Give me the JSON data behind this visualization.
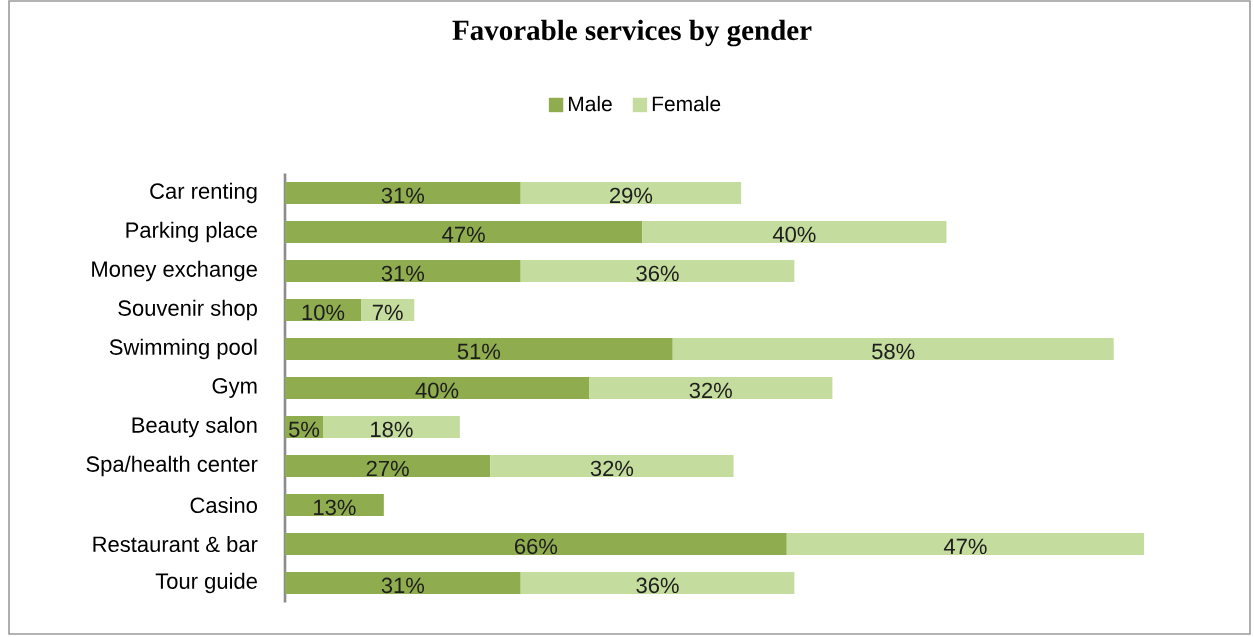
{
  "chart_data": {
    "type": "bar",
    "orientation": "horizontal",
    "stacked": true,
    "title": "Favorable services by gender",
    "categories": [
      "Car renting",
      "Parking place",
      "Money exchange",
      "Souvenir shop",
      "Swimming pool",
      "Gym",
      "Beauty salon",
      "Spa/health center",
      "Casino",
      "Restaurant & bar",
      "Tour guide"
    ],
    "series": [
      {
        "name": "Male",
        "color": "#8fad4f",
        "values": [
          31,
          47,
          31,
          10,
          51,
          40,
          5,
          27,
          13,
          66,
          31
        ],
        "value_labels": [
          "31%",
          "47%",
          "31%",
          "10%",
          "51%",
          "40%",
          "5%",
          "27%",
          "13%",
          "66%",
          "31%"
        ]
      },
      {
        "name": "Female",
        "color": "#c4dc9d",
        "values": [
          29,
          40,
          36,
          7,
          58,
          32,
          18,
          32,
          null,
          47,
          36
        ],
        "value_labels": [
          "29%",
          "40%",
          "36%",
          "7%",
          "58%",
          "32%",
          "18%",
          "32%",
          null,
          "47%",
          "36%"
        ]
      }
    ],
    "legend": "top",
    "tick_labels": "y"
  }
}
